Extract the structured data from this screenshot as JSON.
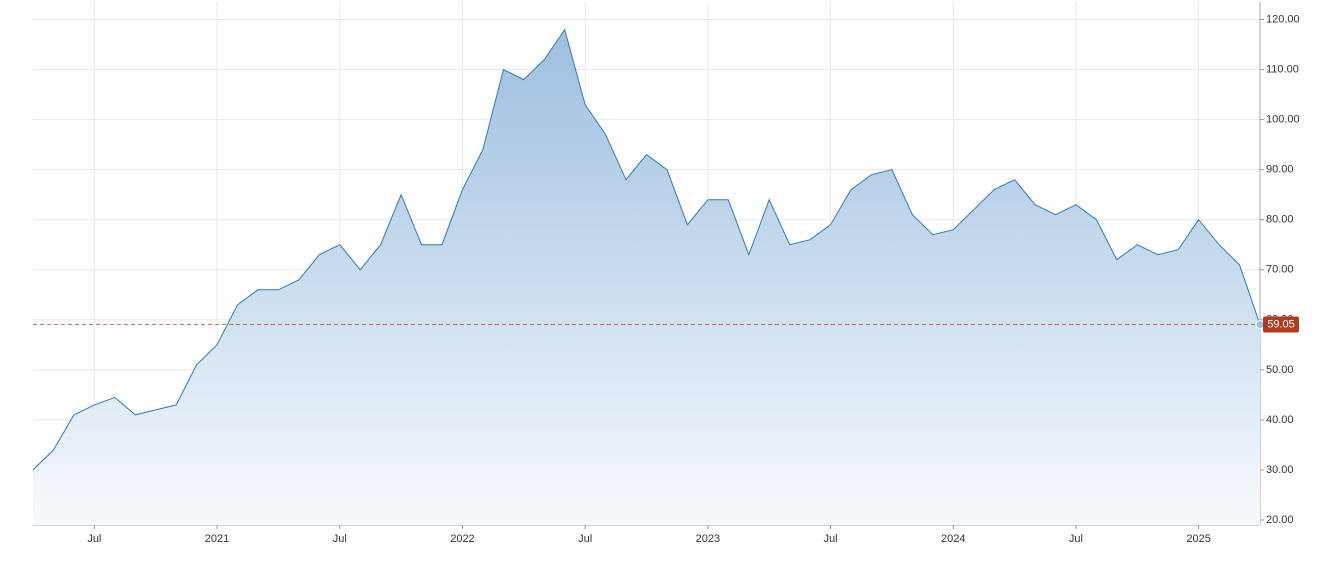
{
  "chart_data": {
    "type": "area",
    "x": [
      "2020-04",
      "2020-05",
      "2020-06",
      "2020-07",
      "2020-08",
      "2020-09",
      "2020-10",
      "2020-11",
      "2020-12",
      "2021-01",
      "2021-02",
      "2021-03",
      "2021-04",
      "2021-05",
      "2021-06",
      "2021-07",
      "2021-08",
      "2021-09",
      "2021-10",
      "2021-11",
      "2021-12",
      "2022-01",
      "2022-02",
      "2022-03",
      "2022-04",
      "2022-05",
      "2022-06",
      "2022-07",
      "2022-08",
      "2022-09",
      "2022-10",
      "2022-11",
      "2022-12",
      "2023-01",
      "2023-02",
      "2023-03",
      "2023-04",
      "2023-05",
      "2023-06",
      "2023-07",
      "2023-08",
      "2023-09",
      "2023-10",
      "2023-11",
      "2023-12",
      "2024-01",
      "2024-02",
      "2024-03",
      "2024-04",
      "2024-05",
      "2024-06",
      "2024-07",
      "2024-08",
      "2024-09",
      "2024-10",
      "2024-11",
      "2024-12",
      "2025-01",
      "2025-02",
      "2025-03",
      "2025-04"
    ],
    "values": [
      30,
      34,
      41,
      43,
      44.5,
      41,
      42,
      43,
      51,
      55,
      63,
      66,
      66,
      68,
      73,
      75,
      70,
      75,
      85,
      75,
      75,
      86,
      94,
      110,
      108,
      112,
      118,
      103,
      97,
      88,
      93,
      90,
      79,
      84,
      84,
      73,
      84,
      75,
      76,
      79,
      86,
      89,
      90,
      81,
      77,
      78,
      82,
      86,
      88,
      83,
      81,
      83,
      80,
      72,
      75,
      73,
      74,
      80,
      75,
      71,
      59.05
    ],
    "color": "#2f7ab9",
    "xlim": [
      "2020-04",
      "2025-04"
    ],
    "xticks": [
      {
        "value": "2020-07",
        "label": "Jul"
      },
      {
        "value": "2021-01",
        "label": "2021"
      },
      {
        "value": "2021-07",
        "label": "Jul"
      },
      {
        "value": "2022-01",
        "label": "2022"
      },
      {
        "value": "2022-07",
        "label": "Jul"
      },
      {
        "value": "2023-01",
        "label": "2023"
      },
      {
        "value": "2023-07",
        "label": "Jul"
      },
      {
        "value": "2024-01",
        "label": "2024"
      },
      {
        "value": "2024-07",
        "label": "Jul"
      },
      {
        "value": "2025-01",
        "label": "2025"
      }
    ],
    "ylim": [
      19,
      123.5
    ],
    "yticks": [
      {
        "value": 20,
        "label": "20.00"
      },
      {
        "value": 30,
        "label": "30.00"
      },
      {
        "value": 40,
        "label": "40.00"
      },
      {
        "value": 50,
        "label": "50.00"
      },
      {
        "value": 60,
        "label": "60.00"
      },
      {
        "value": 70,
        "label": "70.00"
      },
      {
        "value": 80,
        "label": "80.00"
      },
      {
        "value": 90,
        "label": "90.00"
      },
      {
        "value": 100,
        "label": "100.00"
      },
      {
        "value": 110,
        "label": "110.00"
      },
      {
        "value": 120,
        "label": "120.00"
      }
    ],
    "grid": true
  }
}
